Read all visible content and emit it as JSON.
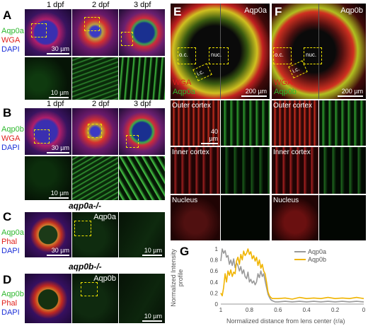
{
  "panels": {
    "A": {
      "letter": "A",
      "ages": [
        "1 dpf",
        "2 dpf",
        "3 dpf"
      ],
      "stains": [
        "Aqp0a",
        "WGA",
        "DAPI"
      ],
      "scale_top": "30 µm",
      "scale_bottom": "10 µm"
    },
    "B": {
      "letter": "B",
      "ages": [
        "1 dpf",
        "2 dpf",
        "3 dpf"
      ],
      "stains": [
        "Aqp0b",
        "WGA",
        "DAPI"
      ],
      "scale_top": "30 µm",
      "scale_bottom": "10 µm"
    },
    "C": {
      "letter": "C",
      "genotype": "aqp0a-/-",
      "stains": [
        "Aqp0a",
        "Phal",
        "DAPI"
      ],
      "channel": "Aqp0a",
      "scale_left": "30 µm",
      "scale_right": "10 µm"
    },
    "D": {
      "letter": "D",
      "genotype": "aqp0b-/-",
      "stains": [
        "Aqp0b",
        "Phal",
        "DAPI"
      ],
      "channel": "Aqp0b",
      "scale_right": "10 µm"
    },
    "E": {
      "letter": "E",
      "channel": "Aqp0a",
      "overlay": [
        "WGA",
        "Aqp0a"
      ],
      "boxes": [
        "o.c.",
        "nuc.",
        "i.c."
      ],
      "scale_top": "200 µm",
      "scale_mid": "40 µm",
      "rows": [
        "Outer cortex",
        "Inner cortex",
        "Nucleus"
      ]
    },
    "F": {
      "letter": "F",
      "channel": "Aqp0b",
      "overlay": [
        "WGA",
        "Aqp0b"
      ],
      "boxes": [
        "o.c.",
        "nuc.",
        "i.c."
      ],
      "scale_top": "200 µm",
      "rows": [
        "Outer cortex",
        "Inner cortex",
        "Nucleus"
      ]
    },
    "G": {
      "letter": "G"
    }
  },
  "chart_data": {
    "type": "line",
    "xlabel": "Normalized distance from lens center (r/a)",
    "ylabel": "Normalized Intensity profile",
    "xlim": [
      1,
      0
    ],
    "ylim": [
      0,
      1
    ],
    "xticks": [
      "1",
      "0.8",
      "0.6",
      "0.4",
      "0.2",
      "0"
    ],
    "yticks": [
      "0",
      "0.2",
      "0.4",
      "0.6",
      "0.8",
      "1"
    ],
    "legend": "top-right",
    "series": [
      {
        "name": "Aqp0a",
        "color": "#999999",
        "x": [
          1.0,
          0.99,
          0.98,
          0.97,
          0.96,
          0.95,
          0.94,
          0.93,
          0.92,
          0.91,
          0.9,
          0.89,
          0.88,
          0.87,
          0.86,
          0.85,
          0.84,
          0.83,
          0.82,
          0.81,
          0.8,
          0.79,
          0.78,
          0.77,
          0.76,
          0.75,
          0.74,
          0.73,
          0.72,
          0.71,
          0.7,
          0.69,
          0.68,
          0.67,
          0.66,
          0.65,
          0.64,
          0.63,
          0.62,
          0.6,
          0.55,
          0.5,
          0.45,
          0.4,
          0.35,
          0.3,
          0.25,
          0.2,
          0.15,
          0.1,
          0.05,
          0.0
        ],
        "y": [
          0.78,
          1.0,
          0.92,
          0.97,
          0.85,
          0.88,
          0.72,
          0.8,
          0.7,
          0.82,
          0.66,
          0.75,
          0.7,
          0.6,
          0.68,
          0.55,
          0.62,
          0.5,
          0.46,
          0.58,
          0.4,
          0.45,
          0.38,
          0.42,
          0.35,
          0.4,
          0.55,
          0.48,
          0.6,
          0.5,
          0.55,
          0.42,
          0.3,
          0.18,
          0.12,
          0.08,
          0.06,
          0.05,
          0.04,
          0.04,
          0.05,
          0.04,
          0.05,
          0.04,
          0.05,
          0.04,
          0.05,
          0.04,
          0.05,
          0.04,
          0.05,
          0.04
        ]
      },
      {
        "name": "Aqp0b",
        "color": "#f0b400",
        "x": [
          1.0,
          0.99,
          0.98,
          0.97,
          0.96,
          0.95,
          0.94,
          0.93,
          0.92,
          0.91,
          0.9,
          0.89,
          0.88,
          0.87,
          0.86,
          0.85,
          0.84,
          0.83,
          0.82,
          0.81,
          0.8,
          0.79,
          0.78,
          0.77,
          0.76,
          0.75,
          0.74,
          0.73,
          0.72,
          0.71,
          0.7,
          0.69,
          0.68,
          0.67,
          0.66,
          0.65,
          0.64,
          0.6,
          0.55,
          0.5,
          0.45,
          0.4,
          0.35,
          0.3,
          0.25,
          0.2,
          0.15,
          0.1,
          0.05,
          0.0
        ],
        "y": [
          0.2,
          0.15,
          0.3,
          0.55,
          0.4,
          0.6,
          0.52,
          0.62,
          0.5,
          0.58,
          0.55,
          0.78,
          0.85,
          0.72,
          0.9,
          0.8,
          0.96,
          0.88,
          0.92,
          1.0,
          0.9,
          0.95,
          0.82,
          0.88,
          0.78,
          0.85,
          0.7,
          0.8,
          0.65,
          0.72,
          0.6,
          0.55,
          0.4,
          0.22,
          0.15,
          0.12,
          0.1,
          0.1,
          0.11,
          0.09,
          0.12,
          0.1,
          0.11,
          0.1,
          0.12,
          0.1,
          0.11,
          0.1,
          0.12,
          0.1
        ]
      }
    ]
  }
}
